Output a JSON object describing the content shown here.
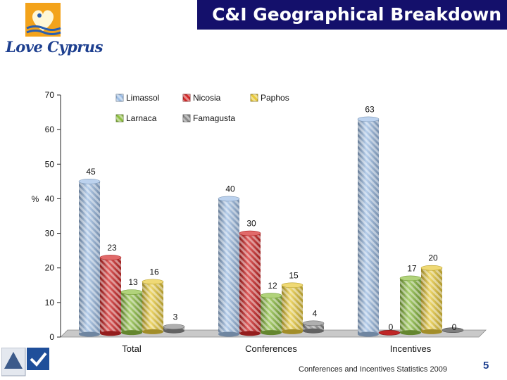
{
  "slide": {
    "title": "C&I Geographical Breakdown",
    "logo_text": "Love Cyprus",
    "footer": "Conferences and Incentives Statistics 2009",
    "page_number": "5"
  },
  "chart_data": {
    "type": "bar",
    "title": "",
    "xlabel": "",
    "ylabel": "%",
    "ylim": [
      0,
      70
    ],
    "yticks": [
      0,
      10,
      20,
      30,
      40,
      50,
      60,
      70
    ],
    "categories": [
      "Total",
      "Conferences",
      "Incentives"
    ],
    "series": [
      {
        "name": "Limassol",
        "values": [
          45,
          40,
          63
        ],
        "color": "#9fbfe6"
      },
      {
        "name": "Nicosia",
        "values": [
          23,
          30,
          0
        ],
        "color": "#d42a2a"
      },
      {
        "name": "Larnaca",
        "values": [
          13,
          12,
          17
        ],
        "color": "#8fc043"
      },
      {
        "name": "Paphos",
        "values": [
          16,
          15,
          20
        ],
        "color": "#e8c93a"
      },
      {
        "name": "Famagusta",
        "values": [
          3,
          4,
          0
        ],
        "color": "#8c8c8c"
      }
    ],
    "legend": {
      "position": "top",
      "rows": [
        [
          "Limassol",
          "Nicosia",
          "Paphos"
        ],
        [
          "Larnaca",
          "Famagusta"
        ]
      ]
    },
    "style": "3d-cylinder",
    "grid": false
  }
}
